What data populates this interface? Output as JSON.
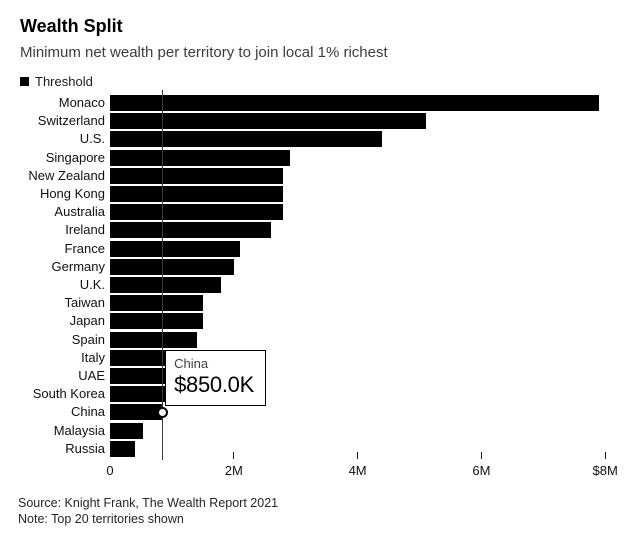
{
  "header": {
    "title": "Wealth Split",
    "subtitle": "Minimum net wealth per territory to join local 1% richest"
  },
  "legend": {
    "label": "Threshold",
    "swatch_color": "#000000"
  },
  "chart_data": {
    "type": "bar",
    "orientation": "horizontal",
    "title": "Wealth Split",
    "subtitle": "Minimum net wealth per territory to join local 1% richest",
    "series_name": "Threshold",
    "unit": "USD millions",
    "categories": [
      "Monaco",
      "Switzerland",
      "U.S.",
      "Singapore",
      "New Zealand",
      "Hong Kong",
      "Australia",
      "Ireland",
      "France",
      "Germany",
      "U.K.",
      "Taiwan",
      "Japan",
      "Spain",
      "Italy",
      "UAE",
      "South Korea",
      "China",
      "Malaysia",
      "Russia"
    ],
    "values": [
      7.9,
      5.1,
      4.4,
      2.9,
      2.8,
      2.8,
      2.8,
      2.6,
      2.1,
      2.0,
      1.8,
      1.5,
      1.5,
      1.4,
      1.4,
      1.0,
      0.93,
      0.85,
      0.54,
      0.4
    ],
    "xlim": [
      0,
      8
    ],
    "x_ticks": [
      {
        "value": 0,
        "label": "0"
      },
      {
        "value": 2,
        "label": "2M"
      },
      {
        "value": 4,
        "label": "4M"
      },
      {
        "value": 6,
        "label": "6M"
      },
      {
        "value": 8,
        "label": "$8M"
      }
    ],
    "bar_color": "#000000",
    "grid": false,
    "legend_position": "top-left"
  },
  "tooltip": {
    "country": "China",
    "value_label": "$850.0K"
  },
  "footer": {
    "source": "Source: Knight Frank, The Wealth Report 2021",
    "note": "Note: Top 20 territories shown"
  }
}
